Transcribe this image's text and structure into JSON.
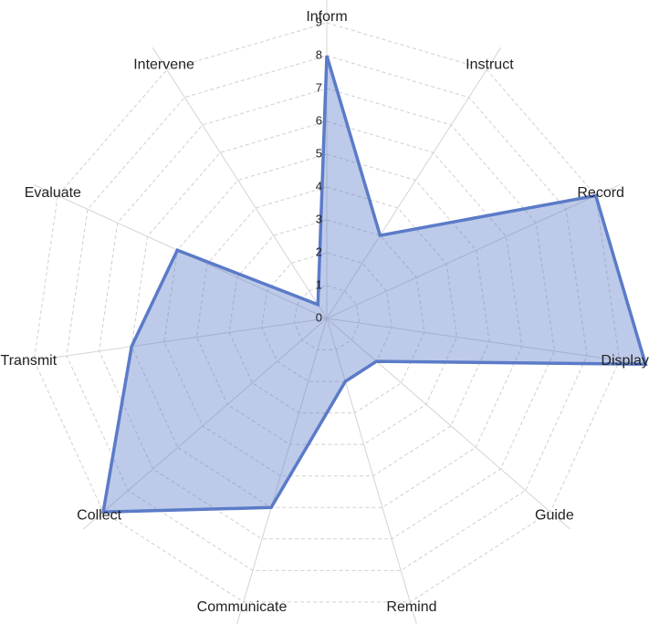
{
  "chart_data": {
    "type": "radar",
    "categories": [
      "Inform",
      "Instruct",
      "Record",
      "Display",
      "Guide",
      "Remind",
      "Communicate",
      "Collect",
      "Transmit",
      "Evaluate",
      "Intervene"
    ],
    "values": [
      8,
      3,
      9,
      9.8,
      2,
      2,
      6,
      9,
      6,
      5,
      0.5
    ],
    "color": "#5b7bc8",
    "ylim": [
      0,
      9.8
    ],
    "yticks": [
      0,
      1,
      2,
      3,
      4,
      5,
      6,
      7,
      8,
      9
    ],
    "grid": true
  }
}
